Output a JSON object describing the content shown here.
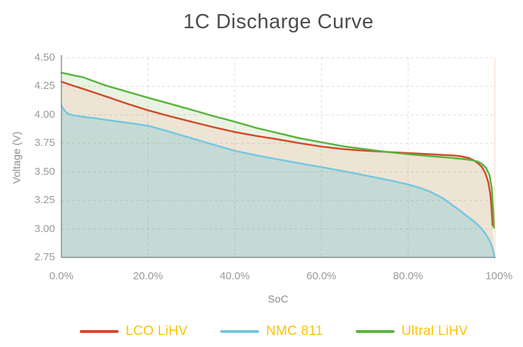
{
  "page": {
    "background": "#ffffff"
  },
  "chart_data": {
    "type": "area",
    "title": "1C Discharge Curve",
    "xlabel": "SoC",
    "ylabel": "Voltage (V)",
    "xlim": [
      0,
      100
    ],
    "ylim": [
      2.75,
      4.5
    ],
    "grid": true,
    "legend_position": "bottom",
    "x_ticks": [
      {
        "v": 0,
        "label": "0.0%"
      },
      {
        "v": 20,
        "label": "20.0%"
      },
      {
        "v": 40,
        "label": "40.0%"
      },
      {
        "v": 60,
        "label": "60.0%"
      },
      {
        "v": 80,
        "label": "80.0%"
      },
      {
        "v": 100,
        "label": "100%"
      }
    ],
    "y_ticks": [
      {
        "v": 4.5,
        "label": "4.50"
      },
      {
        "v": 4.25,
        "label": "4.25"
      },
      {
        "v": 4.0,
        "label": "4.00"
      },
      {
        "v": 3.75,
        "label": "3.75"
      },
      {
        "v": 3.5,
        "label": "3.50"
      },
      {
        "v": 3.25,
        "label": "3.25"
      },
      {
        "v": 3.0,
        "label": "3.00"
      },
      {
        "v": 2.75,
        "label": "2.75"
      }
    ],
    "series": [
      {
        "name": "LCO LiHV",
        "color": "#d14a2a",
        "points": [
          [
            0,
            4.29
          ],
          [
            3,
            4.252
          ],
          [
            5,
            4.228
          ],
          [
            10,
            4.165
          ],
          [
            15,
            4.1
          ],
          [
            20,
            4.04
          ],
          [
            25,
            3.988
          ],
          [
            30,
            3.94
          ],
          [
            35,
            3.893
          ],
          [
            40,
            3.85
          ],
          [
            45,
            3.815
          ],
          [
            50,
            3.785
          ],
          [
            55,
            3.752
          ],
          [
            60,
            3.722
          ],
          [
            65,
            3.7
          ],
          [
            70,
            3.686
          ],
          [
            75,
            3.675
          ],
          [
            80,
            3.665
          ],
          [
            85,
            3.655
          ],
          [
            90,
            3.645
          ],
          [
            92,
            3.638
          ],
          [
            94,
            3.622
          ],
          [
            95,
            3.605
          ],
          [
            96,
            3.58
          ],
          [
            97,
            3.545
          ],
          [
            97.8,
            3.49
          ],
          [
            98.5,
            3.41
          ],
          [
            99,
            3.3
          ],
          [
            99.3,
            3.15
          ],
          [
            99.5,
            3.03
          ]
        ]
      },
      {
        "name": "NMC 811",
        "color": "#74c7e0",
        "points": [
          [
            0,
            4.08
          ],
          [
            0.8,
            4.035
          ],
          [
            1.5,
            4.012
          ],
          [
            2.5,
            3.998
          ],
          [
            4,
            3.988
          ],
          [
            6,
            3.978
          ],
          [
            8,
            3.969
          ],
          [
            10,
            3.958
          ],
          [
            15,
            3.932
          ],
          [
            20,
            3.905
          ],
          [
            25,
            3.852
          ],
          [
            30,
            3.795
          ],
          [
            35,
            3.74
          ],
          [
            40,
            3.685
          ],
          [
            45,
            3.645
          ],
          [
            50,
            3.61
          ],
          [
            55,
            3.575
          ],
          [
            60,
            3.542
          ],
          [
            65,
            3.507
          ],
          [
            70,
            3.47
          ],
          [
            75,
            3.432
          ],
          [
            80,
            3.39
          ],
          [
            83,
            3.356
          ],
          [
            85,
            3.328
          ],
          [
            88,
            3.27
          ],
          [
            90,
            3.215
          ],
          [
            92,
            3.16
          ],
          [
            94,
            3.1
          ],
          [
            95,
            3.072
          ],
          [
            96,
            3.04
          ],
          [
            97,
            3.0
          ],
          [
            98,
            2.95
          ],
          [
            99,
            2.882
          ],
          [
            99.5,
            2.83
          ],
          [
            100,
            2.75
          ]
        ]
      },
      {
        "name": "Ultral LiHV",
        "color": "#5ab33e",
        "points": [
          [
            0,
            4.37
          ],
          [
            3,
            4.345
          ],
          [
            5,
            4.33
          ],
          [
            10,
            4.26
          ],
          [
            15,
            4.205
          ],
          [
            20,
            4.15
          ],
          [
            25,
            4.098
          ],
          [
            30,
            4.045
          ],
          [
            35,
            3.99
          ],
          [
            40,
            3.94
          ],
          [
            45,
            3.885
          ],
          [
            50,
            3.84
          ],
          [
            55,
            3.795
          ],
          [
            60,
            3.76
          ],
          [
            65,
            3.725
          ],
          [
            70,
            3.7
          ],
          [
            75,
            3.675
          ],
          [
            80,
            3.655
          ],
          [
            85,
            3.638
          ],
          [
            90,
            3.623
          ],
          [
            93,
            3.612
          ],
          [
            95,
            3.6
          ],
          [
            96,
            3.592
          ],
          [
            97,
            3.572
          ],
          [
            98,
            3.535
          ],
          [
            98.8,
            3.47
          ],
          [
            99.3,
            3.36
          ],
          [
            99.6,
            3.18
          ],
          [
            99.8,
            3.01
          ]
        ]
      }
    ],
    "fills": {
      "under_nmc": "#c5dad4",
      "nmc_to_lco": "#ede4d4",
      "lco_to_ultral": "#e9f3e2"
    },
    "colors": {
      "title": "#4c4c4c",
      "tick_label": "#999999",
      "axis_title": "#8f8f8f",
      "legend_text": "#fdc400",
      "axis_line": "#76797e",
      "gridline": "#8a8a8a",
      "right_edge_line": "#e99d74"
    }
  }
}
